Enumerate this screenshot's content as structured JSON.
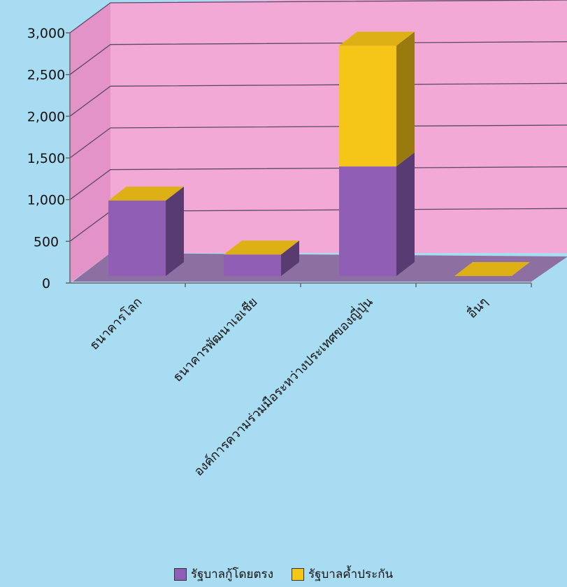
{
  "chart_data": {
    "type": "bar",
    "stacked": true,
    "three_d": true,
    "categories": [
      "ธนาคารโลก",
      "ธนาคารพัฒนาเอเชีย",
      "องค์การความร่วมมือระหว่างประเทศของญี่ปุ่น",
      "อื่นๆ"
    ],
    "series": [
      {
        "name": "รัฐบาลกู้โดยตรง",
        "values": [
          950,
          270,
          1380,
          0
        ],
        "color": "#8e5fb4"
      },
      {
        "name": "รัฐบาลค้ำประกัน",
        "values": [
          0,
          0,
          1520,
          0
        ],
        "color": "#f5c518"
      }
    ],
    "y_ticks": [
      "0",
      "500",
      "1,000",
      "1,500",
      "2,000",
      "2,500",
      "3,000"
    ],
    "ylim": [
      0,
      3000
    ],
    "grid": true,
    "legend_position": "bottom",
    "colors": {
      "background": "#a8dcf2",
      "wall": "#f3a9d5",
      "side_wall": "#e493c7",
      "floor": "#8d6fa2",
      "gridline": "#5a4a66"
    }
  }
}
